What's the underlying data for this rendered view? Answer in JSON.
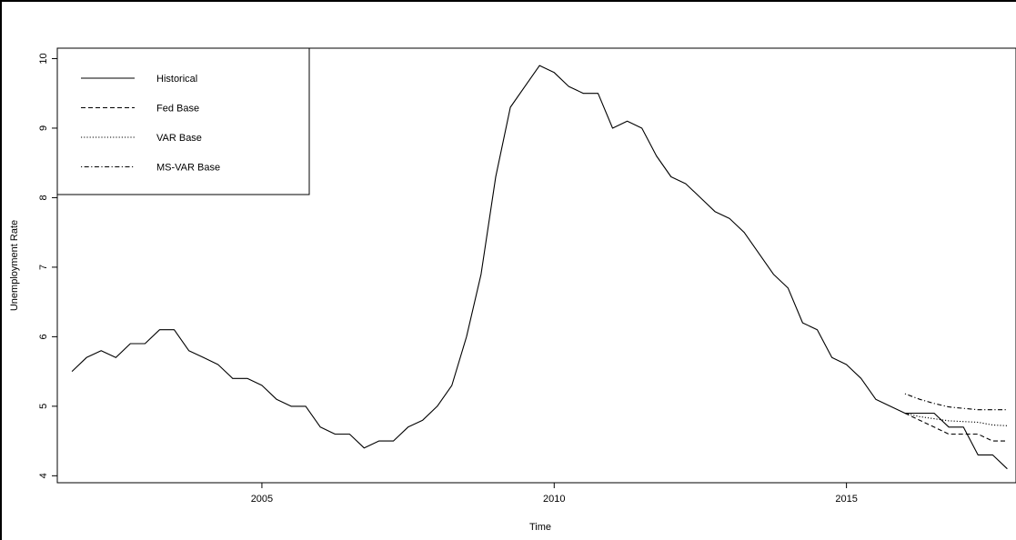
{
  "chart_data": {
    "type": "line",
    "title": "",
    "xlabel": "Time",
    "ylabel": "Unemployment Rate",
    "xlim": [
      2001.5,
      2017.9
    ],
    "ylim": [
      3.9,
      10.15
    ],
    "x_ticks": [
      2005,
      2010,
      2015
    ],
    "y_ticks": [
      4,
      5,
      6,
      7,
      8,
      9,
      10
    ],
    "grid": false,
    "legend_position": "top-left",
    "series": [
      {
        "name": "Historical",
        "line_style": "solid",
        "x": [
          2001.75,
          2002.0,
          2002.25,
          2002.5,
          2002.75,
          2003.0,
          2003.25,
          2003.5,
          2003.75,
          2004.0,
          2004.25,
          2004.5,
          2004.75,
          2005.0,
          2005.25,
          2005.5,
          2005.75,
          2006.0,
          2006.25,
          2006.5,
          2006.75,
          2007.0,
          2007.25,
          2007.5,
          2007.75,
          2008.0,
          2008.25,
          2008.5,
          2008.75,
          2009.0,
          2009.25,
          2009.5,
          2009.75,
          2010.0,
          2010.25,
          2010.5,
          2010.75,
          2011.0,
          2011.25,
          2011.5,
          2011.75,
          2012.0,
          2012.25,
          2012.5,
          2012.75,
          2013.0,
          2013.25,
          2013.5,
          2013.75,
          2014.0,
          2014.25,
          2014.5,
          2014.75,
          2015.0,
          2015.25,
          2015.5,
          2015.75,
          2016.0,
          2016.25,
          2016.5,
          2016.75,
          2017.0,
          2017.25,
          2017.5,
          2017.75
        ],
        "y": [
          5.5,
          5.7,
          5.8,
          5.7,
          5.9,
          5.9,
          6.1,
          6.1,
          5.8,
          5.7,
          5.6,
          5.4,
          5.4,
          5.3,
          5.1,
          5.0,
          5.0,
          4.7,
          4.6,
          4.6,
          4.4,
          4.5,
          4.5,
          4.7,
          4.8,
          5.0,
          5.3,
          6.0,
          6.9,
          8.3,
          9.3,
          9.6,
          9.9,
          9.8,
          9.6,
          9.5,
          9.5,
          9.0,
          9.1,
          9.0,
          8.6,
          8.3,
          8.2,
          8.0,
          7.8,
          7.7,
          7.5,
          7.2,
          6.9,
          6.7,
          6.2,
          6.1,
          5.7,
          5.6,
          5.4,
          5.1,
          5.0,
          4.9,
          4.9,
          4.9,
          4.7,
          4.7,
          4.3,
          4.3,
          4.1
        ]
      },
      {
        "name": "Fed Base",
        "line_style": "dashed",
        "x": [
          2016.0,
          2016.25,
          2016.5,
          2016.75,
          2017.0,
          2017.25,
          2017.5,
          2017.75
        ],
        "y": [
          4.9,
          4.8,
          4.7,
          4.6,
          4.6,
          4.6,
          4.5,
          4.5
        ]
      },
      {
        "name": "VAR Base",
        "line_style": "dotted",
        "x": [
          2016.0,
          2016.25,
          2016.5,
          2016.75,
          2017.0,
          2017.25,
          2017.5,
          2017.75
        ],
        "y": [
          4.9,
          4.85,
          4.82,
          4.79,
          4.78,
          4.77,
          4.73,
          4.72
        ]
      },
      {
        "name": "MS-VAR Base",
        "line_style": "dotdash",
        "x": [
          2016.0,
          2016.25,
          2016.5,
          2016.75,
          2017.0,
          2017.25,
          2017.5,
          2017.75
        ],
        "y": [
          5.18,
          5.1,
          5.04,
          4.99,
          4.97,
          4.95,
          4.95,
          4.95
        ]
      }
    ]
  }
}
